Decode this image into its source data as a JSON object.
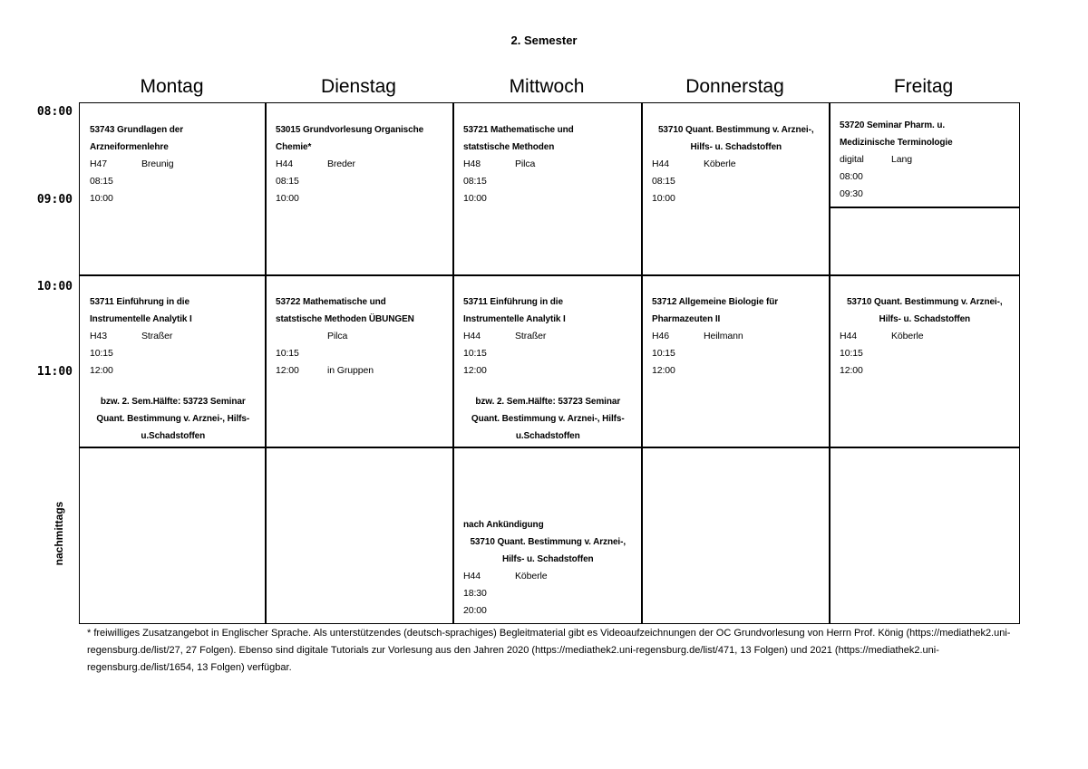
{
  "title": "2. Semester",
  "days": [
    "Montag",
    "Dienstag",
    "Mittwoch",
    "Donnerstag",
    "Freitag"
  ],
  "times": [
    "08:00",
    "09:00",
    "10:00",
    "11:00"
  ],
  "afternoon_label": "nachmittags",
  "cells": [
    {
      "id": "mo-1",
      "title": [
        "53743 Grundlagen der",
        "Arzneiformenlehre"
      ],
      "room": "H47",
      "lecturer": "Breunig",
      "start": "08:15",
      "end": "10:00"
    },
    {
      "id": "di-1",
      "title": [
        "53015 Grundvorlesung Organische",
        "Chemie*"
      ],
      "room": "H44",
      "lecturer": "Breder",
      "start": "08:15",
      "end": "10:00"
    },
    {
      "id": "mi-1",
      "title": [
        "53721 Mathematische und",
        "statstische Methoden"
      ],
      "room": "H48",
      "lecturer": "Pilca",
      "start": "08:15",
      "end": "10:00"
    },
    {
      "id": "do-1",
      "title": [
        "53710 Quant. Bestimmung v. Arznei-,",
        "Hilfs- u. Schadstoffen"
      ],
      "title_center": true,
      "room": "H44",
      "lecturer": "Köberle",
      "start": "08:15",
      "end": "10:00"
    },
    {
      "id": "fr-1",
      "title": [
        "53720 Seminar Pharm. u.",
        "Medizinische Terminologie"
      ],
      "room": "digital",
      "lecturer": "Lang",
      "start": "08:00",
      "end": "09:30"
    },
    {
      "id": "fr-1b"
    },
    {
      "id": "mo-2",
      "title": [
        "53711 Einführung in die",
        "Instrumentelle Analytik I"
      ],
      "room": "H43",
      "lecturer": "Straßer",
      "start": "10:15",
      "end": "12:00",
      "note": [
        "bzw. 2. Sem.Hälfte: 53723 Seminar",
        "Quant. Bestimmung v. Arznei-, Hilfs-",
        "u.Schadstoffen"
      ]
    },
    {
      "id": "di-2",
      "title": [
        "53722 Mathematische und",
        "statstische Methoden ÜBUNGEN"
      ],
      "room": "",
      "lecturer": "Pilca",
      "start": "10:15",
      "end": "12:00",
      "end_extra": "in Gruppen"
    },
    {
      "id": "mi-2",
      "title": [
        "53711 Einführung in die",
        "Instrumentelle Analytik I"
      ],
      "room": "H44",
      "lecturer": "Straßer",
      "start": "10:15",
      "end": "12:00",
      "note": [
        "bzw. 2. Sem.Hälfte: 53723 Seminar",
        "Quant. Bestimmung v. Arznei-, Hilfs-",
        "u.Schadstoffen"
      ]
    },
    {
      "id": "do-2",
      "title": [
        "53712 Allgemeine Biologie für",
        "Pharmazeuten II"
      ],
      "room": "H46",
      "lecturer": "Heilmann",
      "start": "10:15",
      "end": "12:00"
    },
    {
      "id": "fr-2",
      "title": [
        "53710 Quant. Bestimmung v. Arznei-,",
        "Hilfs- u. Schadstoffen"
      ],
      "title_center": true,
      "room": "H44",
      "lecturer": "Köberle",
      "start": "10:15",
      "end": "12:00"
    },
    {
      "id": "mo-3"
    },
    {
      "id": "di-3"
    },
    {
      "id": "mi-3",
      "pre": "nach Ankündigung",
      "title": [
        "53710 Quant. Bestimmung v. Arznei-,",
        "Hilfs- u. Schadstoffen"
      ],
      "title_center": true,
      "room": "H44",
      "lecturer": "Köberle",
      "start": "18:30",
      "end": "20:00"
    },
    {
      "id": "do-3"
    },
    {
      "id": "fr-3"
    }
  ],
  "footnote": "* freiwilliges Zusatzangebot in Englischer Sprache. Als unterstützendes (deutsch-sprachiges) Begleitmaterial gibt es Videoaufzeichnungen der OC Grundvorlesung von Herrn Prof. König (https://mediathek2.uni-regensburg.de/list/27, 27 Folgen). Ebenso sind digitale Tutorials zur Vorlesung aus den Jahren 2020 (https://mediathek2.uni-regensburg.de/list/471, 13 Folgen) und 2021 (https://mediathek2.uni-regensburg.de/list/1654, 13 Folgen) verfügbar."
}
